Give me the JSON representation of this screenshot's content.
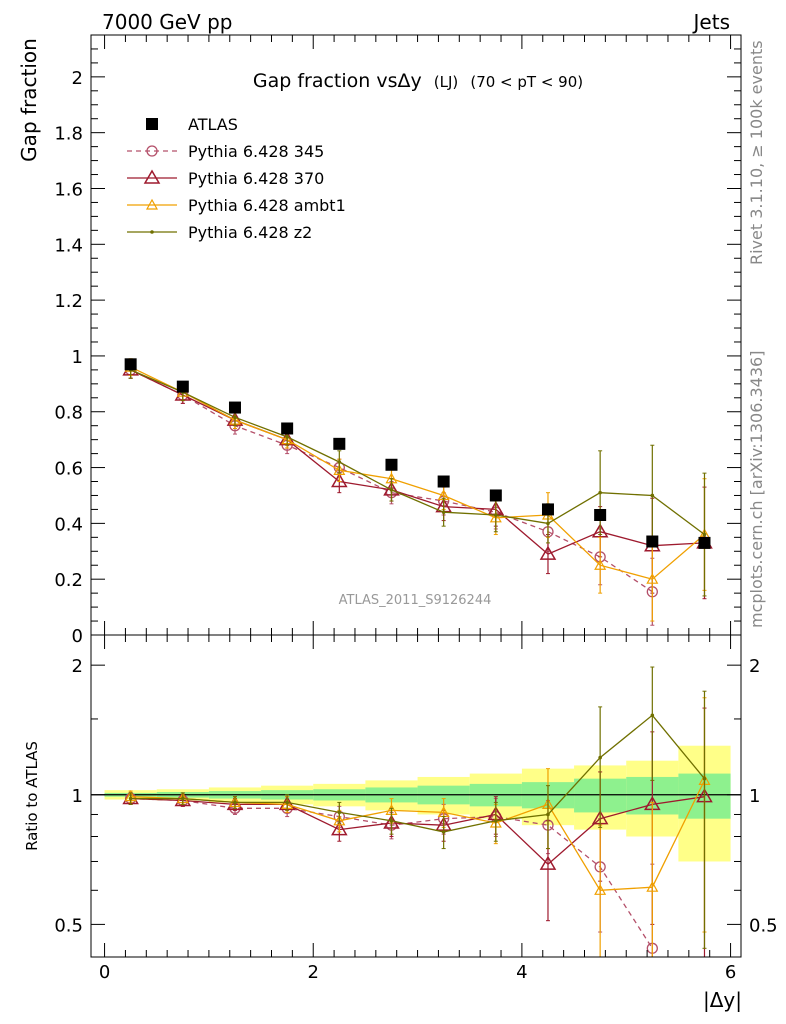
{
  "header": {
    "left_label": "7000 GeV pp",
    "right_label": "Jets"
  },
  "side_labels": {
    "rivet": "Rivet 3.1.10, ≥ 100k events",
    "mcplots": "mcplots.cern.ch [arXiv:1306.3436]"
  },
  "chart_data": [
    {
      "type": "line",
      "title": "Gap fraction vsΔy",
      "title_suffix": "(LJ)",
      "title_cut": "(70 < pT <  90)",
      "ylabel": "Gap fraction",
      "xlabel": "",
      "watermark": "ATLAS_2011_S9126244",
      "xlim": [
        -0.13,
        6.1
      ],
      "ylim": [
        0,
        2.15
      ],
      "y_ticks": [
        "0",
        "0.2",
        "0.4",
        "0.6",
        "0.8",
        "1",
        "1.2",
        "1.4",
        "1.6",
        "1.8",
        "2"
      ],
      "y_tick_values": [
        0,
        0.2,
        0.4,
        0.6,
        0.8,
        1.0,
        1.2,
        1.4,
        1.6,
        1.8,
        2.0
      ],
      "legend_position": "top-left",
      "x": [
        0.25,
        0.75,
        1.25,
        1.75,
        2.25,
        2.75,
        3.25,
        3.75,
        4.25,
        4.75,
        5.25,
        5.75
      ],
      "series": [
        {
          "name": "ATLAS",
          "color": "#000000",
          "marker": "square",
          "line": "none",
          "values": [
            0.97,
            0.89,
            0.815,
            0.74,
            0.685,
            0.61,
            0.55,
            0.5,
            0.45,
            0.43,
            0.335,
            0.33
          ]
        },
        {
          "name": "Pythia 6.428 345",
          "color": "#b4506a",
          "marker": "circle",
          "line": "dashed",
          "values": [
            0.95,
            0.86,
            0.75,
            0.68,
            0.6,
            0.51,
            0.48,
            0.44,
            0.37,
            0.28,
            0.155,
            null
          ],
          "errors": [
            0.03,
            0.03,
            0.03,
            0.03,
            0.03,
            0.04,
            0.05,
            0.06,
            0.07,
            0.1,
            0.12,
            null
          ]
        },
        {
          "name": "Pythia 6.428 370",
          "color": "#9e1a2e",
          "marker": "triangle",
          "line": "solid",
          "values": [
            0.95,
            0.86,
            0.77,
            0.7,
            0.55,
            0.52,
            0.46,
            0.45,
            0.29,
            0.37,
            0.32,
            0.33
          ],
          "errors": [
            0.03,
            0.03,
            0.03,
            0.03,
            0.04,
            0.04,
            0.05,
            0.06,
            0.07,
            0.09,
            0.17,
            0.2
          ]
        },
        {
          "name": "Pythia 6.428 ambt1",
          "color": "#f0a000",
          "marker": "small-triangle",
          "line": "solid",
          "values": [
            0.96,
            0.87,
            0.77,
            0.7,
            0.59,
            0.56,
            0.5,
            0.42,
            0.43,
            0.25,
            0.2,
            0.36
          ],
          "errors": [
            0.03,
            0.03,
            0.03,
            0.03,
            0.04,
            0.04,
            0.05,
            0.06,
            0.08,
            0.1,
            0.15,
            0.2
          ]
        },
        {
          "name": "Pythia 6.428 z2",
          "color": "#707000",
          "marker": "dot",
          "line": "solid",
          "values": [
            0.95,
            0.87,
            0.78,
            0.71,
            0.62,
            0.52,
            0.44,
            0.43,
            0.4,
            0.51,
            0.5,
            0.36
          ],
          "errors": [
            0.03,
            0.03,
            0.03,
            0.03,
            0.04,
            0.04,
            0.05,
            0.06,
            0.07,
            0.15,
            0.18,
            0.22
          ]
        }
      ]
    },
    {
      "type": "line",
      "title": "",
      "ylabel": "Ratio to ATLAS",
      "xlabel": "|Δy|",
      "scale": "log",
      "xlim": [
        -0.13,
        6.1
      ],
      "ylim": [
        0.42,
        2.35
      ],
      "x_ticks": [
        "0",
        "2",
        "4",
        "6"
      ],
      "x_tick_values": [
        0,
        2,
        4,
        6
      ],
      "y_ticks": [
        "0.5",
        "1",
        "2"
      ],
      "y_tick_values": [
        0.5,
        1,
        2
      ],
      "x": [
        0.25,
        0.75,
        1.25,
        1.75,
        2.25,
        2.75,
        3.25,
        3.75,
        4.25,
        4.75,
        5.25,
        5.75
      ],
      "bands": {
        "inner_color": "#8ef18e",
        "outer_color": "#ffff88",
        "inner_halfwidth": [
          0.01,
          0.015,
          0.02,
          0.025,
          0.03,
          0.04,
          0.05,
          0.06,
          0.07,
          0.09,
          0.1,
          0.12
        ],
        "outer_halfwidth": [
          0.025,
          0.03,
          0.04,
          0.05,
          0.06,
          0.08,
          0.1,
          0.12,
          0.15,
          0.17,
          0.2,
          0.3
        ]
      },
      "series": [
        {
          "name": "Pythia 6.428 345",
          "color": "#b4506a",
          "marker": "circle",
          "line": "dashed",
          "values": [
            0.98,
            0.97,
            0.93,
            0.93,
            0.89,
            0.85,
            0.88,
            0.89,
            0.85,
            0.68,
            0.44,
            null
          ],
          "errors": [
            0.03,
            0.03,
            0.03,
            0.04,
            0.05,
            0.06,
            0.07,
            0.09,
            0.12,
            0.2,
            0.25,
            null
          ]
        },
        {
          "name": "Pythia 6.428 370",
          "color": "#9e1a2e",
          "marker": "triangle",
          "line": "solid",
          "values": [
            0.98,
            0.97,
            0.95,
            0.95,
            0.83,
            0.86,
            0.85,
            0.9,
            0.69,
            0.88,
            0.95,
            0.99
          ],
          "errors": [
            0.03,
            0.03,
            0.03,
            0.04,
            0.05,
            0.06,
            0.07,
            0.09,
            0.18,
            0.25,
            0.45,
            0.6
          ]
        },
        {
          "name": "Pythia 6.428 ambt1",
          "color": "#f0a000",
          "marker": "small-triangle",
          "line": "solid",
          "values": [
            0.99,
            0.98,
            0.96,
            0.95,
            0.87,
            0.92,
            0.91,
            0.86,
            0.95,
            0.6,
            0.61,
            1.08
          ],
          "errors": [
            0.03,
            0.03,
            0.03,
            0.04,
            0.05,
            0.06,
            0.07,
            0.09,
            0.2,
            0.25,
            0.35,
            0.6
          ]
        },
        {
          "name": "Pythia 6.428 z2",
          "color": "#707000",
          "marker": "dot",
          "line": "solid",
          "values": [
            0.98,
            0.98,
            0.96,
            0.96,
            0.91,
            0.87,
            0.82,
            0.87,
            0.9,
            1.22,
            1.53,
            1.09
          ],
          "errors": [
            0.03,
            0.03,
            0.03,
            0.04,
            0.05,
            0.06,
            0.07,
            0.09,
            0.15,
            0.38,
            0.45,
            0.65
          ]
        }
      ]
    }
  ]
}
